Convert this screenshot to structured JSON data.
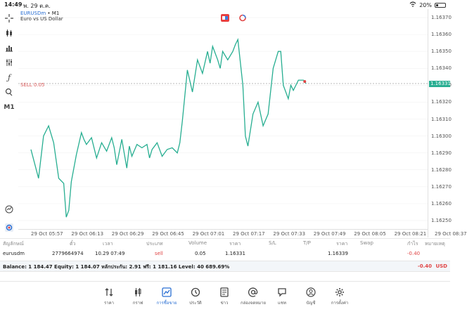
{
  "status_bar": {
    "time": "14:49",
    "date": "พ. 29 ต.ค.",
    "battery": "20%"
  },
  "chart": {
    "symbol": "EURUSDm",
    "timeframe_text": "• M1",
    "description": "Euro vs US Dollar",
    "sell_label": "SELL 0.05",
    "current_price": "1.16331",
    "colors": {
      "line": "#27ae91",
      "sell": "#e04545",
      "accent": "#2a6fd3"
    }
  },
  "toolbar": {
    "timeframe": "M1",
    "icons": [
      "crosshair-icon",
      "candles-icon",
      "bars-icon",
      "indicators-icon",
      "function-icon",
      "objects-icon",
      "timeframe-label",
      "chart-zoom-icon",
      "settings-logo-icon"
    ]
  },
  "chart_data": {
    "type": "line",
    "y_ticks": [
      "1.16370",
      "1.16360",
      "1.16350",
      "1.16340",
      "1.16330",
      "1.16320",
      "1.16310",
      "1.16300",
      "1.16290",
      "1.16280",
      "1.16270",
      "1.16260",
      "1.16250"
    ],
    "x_ticks": [
      "29 Oct 05:57",
      "29 Oct 06:13",
      "29 Oct 06:29",
      "29 Oct 06:45",
      "29 Oct 07:01",
      "29 Oct 07:17",
      "29 Oct 07:33",
      "29 Oct 07:49",
      "29 Oct 08:05",
      "29 Oct 08:21",
      "29 Oct 08:37"
    ],
    "ylim": [
      1.16245,
      1.16375
    ],
    "sell_level": 1.16331,
    "x_minutes": [
      0,
      3,
      5,
      7,
      9,
      11,
      13,
      14,
      15,
      16,
      18,
      20,
      21,
      22,
      24,
      26,
      28,
      30,
      32,
      33,
      34,
      36,
      38,
      39,
      40,
      42,
      44,
      46,
      47,
      48,
      50,
      52,
      54,
      56,
      58,
      59,
      60,
      62,
      64,
      66,
      68,
      70,
      71,
      72,
      74,
      75,
      76,
      78,
      80,
      81,
      82,
      84,
      85,
      86,
      88,
      90,
      92,
      94,
      96,
      98,
      99,
      100,
      102,
      103,
      104,
      106,
      108,
      109
    ],
    "values": [
      1.16292,
      1.16275,
      1.163,
      1.16306,
      1.16296,
      1.16275,
      1.16272,
      1.16252,
      1.16256,
      1.16273,
      1.16289,
      1.16302,
      1.16298,
      1.16295,
      1.16299,
      1.16287,
      1.16296,
      1.16291,
      1.16299,
      1.16293,
      1.16283,
      1.16298,
      1.16281,
      1.16294,
      1.16288,
      1.16295,
      1.16293,
      1.16295,
      1.16287,
      1.16292,
      1.16296,
      1.16288,
      1.16292,
      1.16293,
      1.1629,
      1.16296,
      1.16309,
      1.16339,
      1.16326,
      1.16345,
      1.16337,
      1.1635,
      1.16343,
      1.16353,
      1.16345,
      1.1634,
      1.1635,
      1.16345,
      1.1635,
      1.16354,
      1.16357,
      1.1633,
      1.163,
      1.16294,
      1.16313,
      1.1632,
      1.16306,
      1.16313,
      1.1634,
      1.1635,
      1.1635,
      1.1633,
      1.16322,
      1.1633,
      1.16327,
      1.16333,
      1.16333,
      1.16331
    ]
  },
  "trade_table": {
    "headers": [
      "สัญลักษณ์",
      "ตั๋ว",
      "เวลา",
      "ประเภท",
      "Volume",
      "ราคา",
      "S/L",
      "T/P",
      "ราคา",
      "Swap",
      "กำไร",
      "หมายเหตุ"
    ],
    "row": {
      "symbol": "eurusdm",
      "ticket": "2779664974",
      "time": "10.29 07:49",
      "type": "sell",
      "volume": "0.05",
      "price": "1.16331",
      "sl": "",
      "tp": "",
      "current_price": "1.16339",
      "swap": "",
      "profit": "-0.40",
      "comment": ""
    },
    "balance_text": "Balance: 1 184.47 Equity: 1 184.07 หลักประกัน: 2.91 ฟรี: 1 181.16 Level: 40 689.69%",
    "total_profit": "-0.40",
    "currency": "USD"
  },
  "bottom_nav": [
    {
      "label": "ราคา",
      "icon": "quotes-icon"
    },
    {
      "label": "กราฟ",
      "icon": "chart-candles-icon"
    },
    {
      "label": "การซื้อขาย",
      "icon": "trade-icon"
    },
    {
      "label": "ประวัติ",
      "icon": "history-icon"
    },
    {
      "label": "ข่าว",
      "icon": "news-icon"
    },
    {
      "label": "กล่องจดหมาย",
      "icon": "mailbox-icon"
    },
    {
      "label": "แชท",
      "icon": "chat-icon"
    },
    {
      "label": "บัญชี",
      "icon": "account-icon"
    },
    {
      "label": "การตั้งค่า",
      "icon": "settings-icon"
    }
  ]
}
